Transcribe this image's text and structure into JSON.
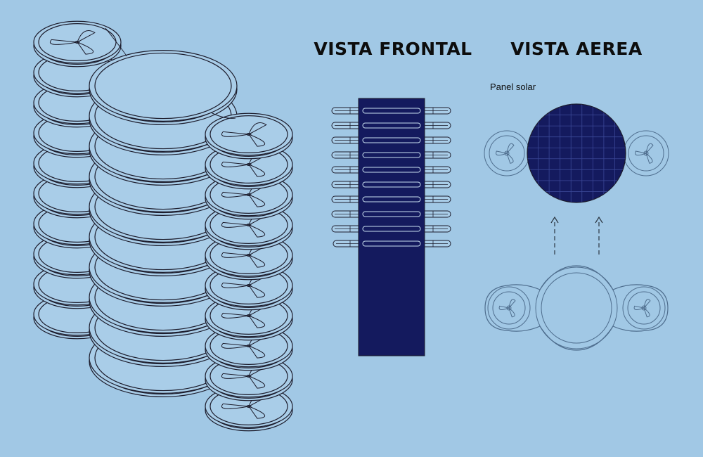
{
  "titles": {
    "front_view": "VISTA FRONTAL",
    "aerial_view": "VISTA AEREA"
  },
  "labels": {
    "solar_panel": "Panel solar"
  },
  "colors": {
    "background": "#a1c8e5",
    "panel_fill": "#141a5e",
    "outline": "#1c1c2c",
    "ring_fill": "#a9cde8",
    "ghost_line": "#4f6e8e"
  },
  "stack": {
    "drone_count": 10
  },
  "front_view": {
    "drone_count": 10
  },
  "aerial_view": {
    "panel_grid_cells": 9,
    "arrow_count": 2
  }
}
